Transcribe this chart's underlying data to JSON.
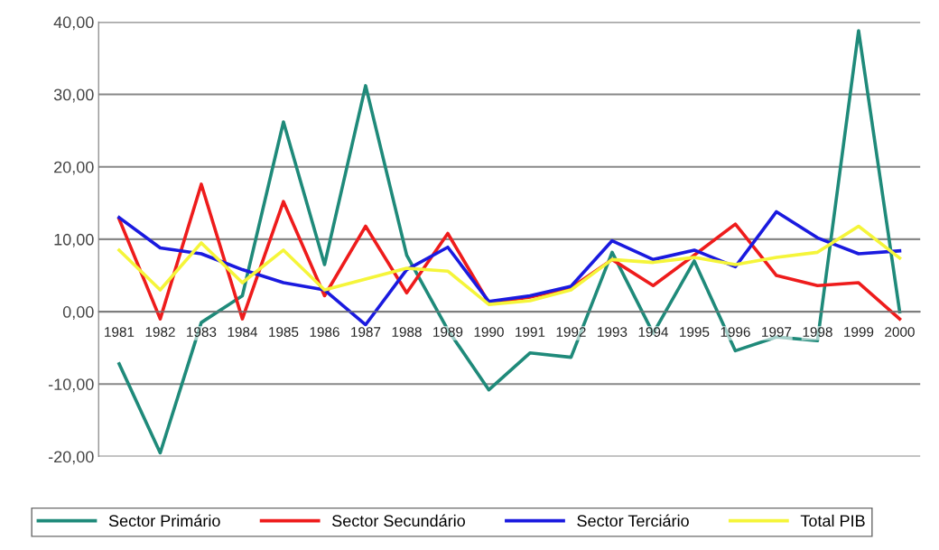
{
  "chart_data": {
    "type": "line",
    "categories": [
      "1981",
      "1982",
      "1983",
      "1984",
      "1985",
      "1986",
      "1987",
      "1988",
      "1989",
      "1990",
      "1991",
      "1992",
      "1993",
      "1994",
      "1995",
      "1996",
      "1997",
      "1998",
      "1999",
      "2000"
    ],
    "series": [
      {
        "name": "Sector Primário",
        "color": "#1f8a7a",
        "values": [
          -7.2,
          -19.5,
          -1.5,
          2.2,
          26.2,
          6.5,
          31.2,
          7.8,
          -2.5,
          -10.8,
          -5.7,
          -6.3,
          8.2,
          -3.0,
          7.0,
          -5.4,
          -3.5,
          -4.0,
          38.8,
          0
        ]
      },
      {
        "name": "Sector Secundário",
        "color": "#ee1c1c",
        "values": [
          12.8,
          -1.0,
          17.6,
          -1.0,
          15.2,
          2.2,
          11.8,
          2.6,
          10.8,
          1.2,
          2.0,
          3.3,
          7.2,
          3.6,
          7.8,
          12.1,
          5.0,
          3.6,
          4.0,
          -1.0
        ]
      },
      {
        "name": "Sector Terciário",
        "color": "#1a1adf",
        "values": [
          13.0,
          8.8,
          8.0,
          5.8,
          4.0,
          3.0,
          -1.8,
          5.8,
          8.9,
          1.4,
          2.2,
          3.5,
          9.8,
          7.2,
          8.5,
          6.2,
          13.8,
          10.2,
          8.0,
          8.4
        ]
      },
      {
        "name": "Total PIB",
        "color": "#f5f53a",
        "values": [
          8.5,
          3.0,
          9.5,
          4.0,
          8.5,
          3.0,
          4.5,
          6.0,
          5.6,
          1.0,
          1.5,
          3.0,
          7.2,
          6.8,
          7.5,
          6.5,
          7.5,
          8.2,
          11.8,
          7.4
        ]
      }
    ],
    "ylim": [
      -20,
      40
    ],
    "yticks": [
      {
        "value": -20,
        "label": "-20,00"
      },
      {
        "value": -10,
        "label": "-10,00"
      },
      {
        "value": 0,
        "label": "0,00"
      },
      {
        "value": 10,
        "label": "10,00"
      },
      {
        "value": 20,
        "label": "20,00"
      },
      {
        "value": 30,
        "label": "30,00"
      },
      {
        "value": 40,
        "label": "40,00"
      }
    ],
    "grid": "y",
    "legend": "bottom",
    "marker": "none",
    "line_style": "solid"
  }
}
